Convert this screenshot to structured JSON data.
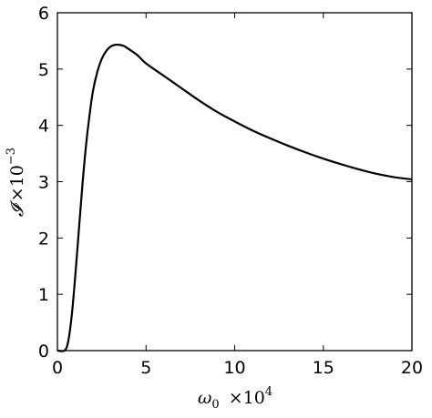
{
  "chart_data": {
    "type": "line",
    "title": "",
    "xlabel": {
      "symbol": "ω",
      "subscript": "0",
      "factor": "×10",
      "exponent": "4"
    },
    "ylabel": {
      "symbol": "𝓘",
      "factor": "×10",
      "exponent": "−3"
    },
    "xlim": [
      0,
      20
    ],
    "ylim": [
      0,
      6
    ],
    "xticks": [
      "0",
      "5",
      "10",
      "15",
      "20"
    ],
    "yticks": [
      "0",
      "1",
      "2",
      "3",
      "4",
      "5",
      "6"
    ],
    "grid": false,
    "legend": "none",
    "line_color": "#000000",
    "series": [
      {
        "x": [
          0,
          0.4,
          0.6,
          0.8,
          1.0,
          1.2,
          1.4,
          1.6,
          1.8,
          2.0,
          2.25,
          2.5,
          2.75,
          3.0,
          3.25,
          3.5,
          3.75,
          4.0,
          4.5,
          5.0,
          6.0,
          7.0,
          8.0,
          9.0,
          10.0,
          11.0,
          12.0,
          13.0,
          14.0,
          15.0,
          16.0,
          17.0,
          18.0,
          19.0,
          20.0
        ],
        "y": [
          0,
          0,
          0.15,
          0.6,
          1.3,
          2.1,
          2.9,
          3.6,
          4.15,
          4.6,
          4.95,
          5.18,
          5.32,
          5.4,
          5.43,
          5.43,
          5.41,
          5.36,
          5.25,
          5.1,
          4.88,
          4.66,
          4.44,
          4.24,
          4.07,
          3.91,
          3.77,
          3.64,
          3.52,
          3.41,
          3.31,
          3.22,
          3.14,
          3.08,
          3.04
        ]
      }
    ]
  }
}
